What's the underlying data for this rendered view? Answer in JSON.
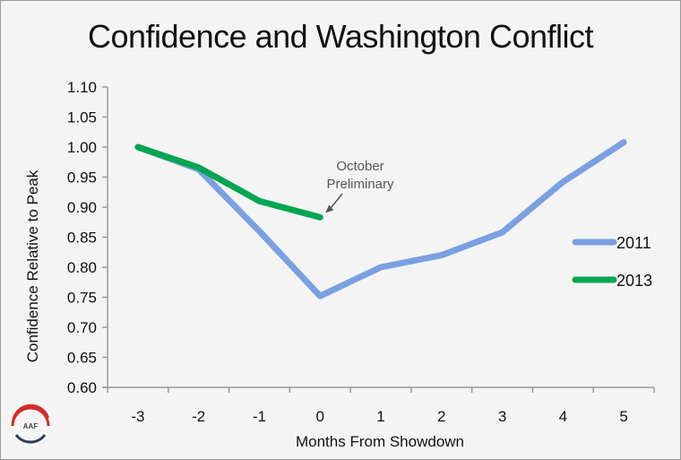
{
  "chart_data": {
    "type": "line",
    "title": "Confidence and Washington Conflict",
    "xlabel": "Months From Showdown",
    "ylabel": "Confidence Relative to Peak",
    "x": [
      -3,
      -2,
      -1,
      0,
      1,
      2,
      3,
      4,
      5
    ],
    "x_tick_labels": [
      "-3",
      "-2",
      "-1",
      "0",
      "1",
      "2",
      "3",
      "4",
      "5"
    ],
    "y_tick_labels": [
      "0.60",
      "0.65",
      "0.70",
      "0.75",
      "0.80",
      "0.85",
      "0.90",
      "0.95",
      "1.00",
      "1.05",
      "1.10"
    ],
    "ylim": [
      0.6,
      1.1
    ],
    "grid": false,
    "legend_position": "right",
    "series": [
      {
        "name": "2011",
        "color": "#7aa0e0",
        "values": [
          1.0,
          0.963,
          0.86,
          0.752,
          0.8,
          0.82,
          0.858,
          0.942,
          1.008
        ]
      },
      {
        "name": "2013",
        "color": "#00a651",
        "values": [
          1.0,
          0.966,
          0.91,
          0.883,
          null,
          null,
          null,
          null,
          null
        ]
      }
    ],
    "annotations": [
      {
        "text_lines": [
          "October",
          "Preliminary"
        ],
        "points_to": {
          "series": "2013",
          "x": 0
        }
      }
    ]
  },
  "logo": {
    "text": "AAF",
    "top_color": "#d42b2b",
    "bottom_color": "#2f3b52"
  }
}
